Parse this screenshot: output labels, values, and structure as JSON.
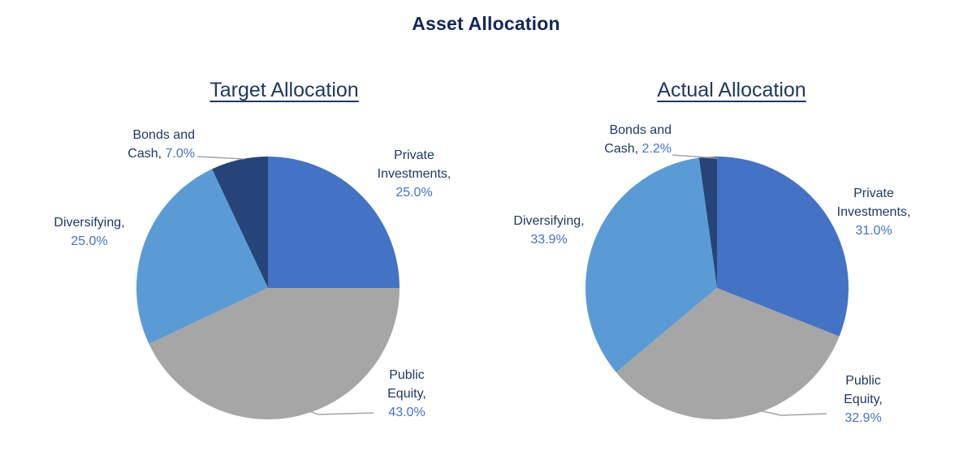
{
  "title": "Asset Allocation",
  "theme": {
    "background": "#FFFFFF",
    "title_color": "#13265B",
    "category_label_color": "#1F3864",
    "percent_label_color": "#4472C4",
    "leader_line_color": "#A6A6A6"
  },
  "chart_data": [
    {
      "type": "pie",
      "title": "Target Allocation",
      "categories": [
        "Private Investments",
        "Public Equity",
        "Diversifying",
        "Bonds and Cash"
      ],
      "values": [
        25.0,
        43.0,
        25.0,
        7.0
      ],
      "percent_labels": [
        "25.0%",
        "43.0%",
        "25.0%",
        "7.0%"
      ],
      "colors": [
        "#4472C4",
        "#A6A6A6",
        "#5B9BD5",
        "#264478"
      ],
      "start_angle_deg": 0,
      "direction": "clockwise",
      "legend": "none",
      "data_labels": "outside: category name + percent"
    },
    {
      "type": "pie",
      "title": "Actual Allocation",
      "categories": [
        "Private Investments",
        "Public Equity",
        "Diversifying",
        "Bonds and Cash"
      ],
      "values": [
        31.0,
        32.9,
        33.9,
        2.2
      ],
      "percent_labels": [
        "31.0%",
        "32.9%",
        "33.9%",
        "2.2%"
      ],
      "colors": [
        "#4472C4",
        "#A6A6A6",
        "#5B9BD5",
        "#264478"
      ],
      "start_angle_deg": 0,
      "direction": "clockwise",
      "legend": "none",
      "data_labels": "outside: category name + percent"
    }
  ],
  "charts": [
    {
      "subtitle": "Target Allocation",
      "labels": {
        "bonds": {
          "line1": "Bonds and",
          "prefix": "Cash, ",
          "percent": "7.0%"
        },
        "private": {
          "line1": "Private",
          "line2": "Investments,",
          "percent": "25.0%"
        },
        "diversifying": {
          "line1": "Diversifying,",
          "percent": "25.0%"
        },
        "public": {
          "line1": "Public",
          "line2": "Equity,",
          "percent": "43.0%"
        }
      }
    },
    {
      "subtitle": "Actual Allocation",
      "labels": {
        "bonds": {
          "line1": "Bonds and",
          "prefix": "Cash, ",
          "percent": "2.2%"
        },
        "private": {
          "line1": "Private",
          "line2": "Investments,",
          "percent": "31.0%"
        },
        "diversifying": {
          "line1": "Diversifying,",
          "percent": "33.9%"
        },
        "public": {
          "line1": "Public",
          "line2": "Equity,",
          "percent": "32.9%"
        }
      }
    }
  ]
}
